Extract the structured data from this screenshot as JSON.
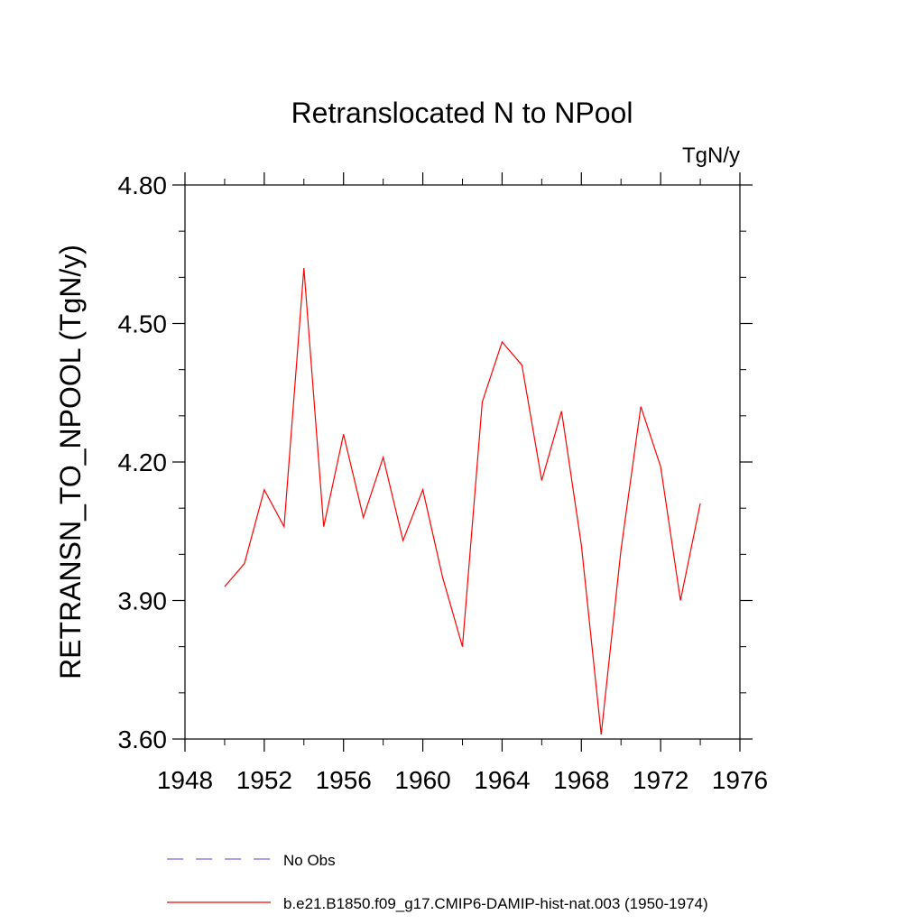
{
  "chart_data": {
    "type": "line",
    "title": "Retranslocated N to NPool",
    "units": "TgN/y",
    "ylabel": "RETRANSN_TO_NPOOL  (TgN/y)",
    "xlabel": "",
    "xlim": [
      1948,
      1976
    ],
    "ylim": [
      3.6,
      4.8
    ],
    "x_ticks": [
      1948,
      1952,
      1956,
      1960,
      1964,
      1968,
      1972,
      1976
    ],
    "x_tick_labels": [
      "1948",
      "1952",
      "1956",
      "1960",
      "1964",
      "1968",
      "1972",
      "1976"
    ],
    "y_ticks": [
      3.6,
      3.9,
      4.2,
      4.5,
      4.8
    ],
    "y_tick_labels": [
      "3.60",
      "3.90",
      "4.20",
      "4.50",
      "4.80"
    ],
    "grid": false,
    "series": [
      {
        "name": "b.e21.B1850.f09_g17.CMIP6-DAMIP-hist-nat.003 (1950-1974)",
        "color": "#ff0000",
        "line_style": "solid",
        "x": [
          1950,
          1951,
          1952,
          1953,
          1954,
          1955,
          1956,
          1957,
          1958,
          1959,
          1960,
          1961,
          1962,
          1963,
          1964,
          1965,
          1966,
          1967,
          1968,
          1969,
          1970,
          1971,
          1972,
          1973,
          1974
        ],
        "y": [
          3.93,
          3.98,
          4.14,
          4.06,
          4.62,
          4.06,
          4.26,
          4.08,
          4.21,
          4.03,
          4.14,
          3.95,
          3.8,
          4.33,
          4.46,
          4.41,
          4.16,
          4.31,
          4.02,
          3.61,
          4.01,
          4.32,
          4.19,
          3.9,
          4.11
        ]
      }
    ],
    "legend": {
      "position": "bottom",
      "entries": [
        {
          "label": "No Obs",
          "color": "#7b68ee",
          "line_style": "dashed"
        },
        {
          "label": "b.e21.B1850.f09_g17.CMIP6-DAMIP-hist-nat.003 (1950-1974)",
          "color": "#ff0000",
          "line_style": "solid"
        }
      ]
    }
  }
}
